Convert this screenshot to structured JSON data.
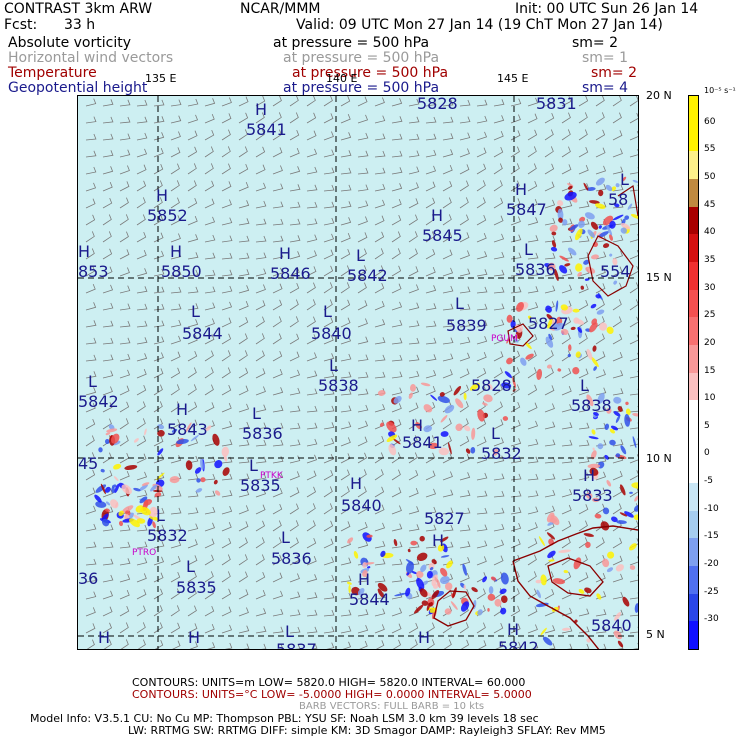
{
  "header": {
    "model": "CONTRAST   3km ARW",
    "org": "NCAR/MMM",
    "init": "Init: 00 UTC Sun 26 Jan 14",
    "fcst_label": "Fcst:",
    "fcst_value": "33 h",
    "valid": "Valid: 09 UTC Mon 27 Jan 14 (19 ChT Mon 27 Jan 14)"
  },
  "fields": [
    {
      "name": "Absolute vorticity",
      "pressure": "at pressure =   500 hPa",
      "sm": "sm= 2",
      "color": "#000000"
    },
    {
      "name": "Horizontal wind vectors",
      "pressure": "at pressure =   500 hPa",
      "sm": "sm= 1",
      "color": "#9a9a9a"
    },
    {
      "name": "Temperature",
      "pressure": "at pressure =   500 hPa",
      "sm": "sm= 2",
      "color": "#a00000"
    },
    {
      "name": "Geopotential height",
      "pressure": "at pressure =   500 hPa",
      "sm": "sm= 4",
      "color": "#1a1a8c"
    }
  ],
  "axes": {
    "lon": [
      "135 E",
      "140 E",
      "145 E"
    ],
    "lat": [
      "20 N",
      "15 N",
      "10 N",
      "5 N"
    ]
  },
  "height_labels": [
    {
      "t": "5828"
    },
    {
      "t": "5831"
    },
    {
      "t": "H"
    },
    {
      "t": "5841"
    },
    {
      "t": "H"
    },
    {
      "t": "5852"
    },
    {
      "t": "H"
    },
    {
      "t": "5847"
    },
    {
      "t": "H"
    },
    {
      "t": "5845"
    },
    {
      "t": "L"
    },
    {
      "t": "58"
    },
    {
      "t": "H"
    },
    {
      "t": "853"
    },
    {
      "t": "H"
    },
    {
      "t": "5850"
    },
    {
      "t": "H"
    },
    {
      "t": "5846"
    },
    {
      "t": "L"
    },
    {
      "t": "5842"
    },
    {
      "t": "L"
    },
    {
      "t": "5836"
    },
    {
      "t": "554"
    },
    {
      "t": "L"
    },
    {
      "t": "5844"
    },
    {
      "t": "L"
    },
    {
      "t": "5840"
    },
    {
      "t": "L"
    },
    {
      "t": "5839"
    },
    {
      "t": "5827"
    },
    {
      "t": "L"
    },
    {
      "t": "5838"
    },
    {
      "t": "5828"
    },
    {
      "t": "L"
    },
    {
      "t": "5838"
    },
    {
      "t": "L"
    },
    {
      "t": "5842"
    },
    {
      "t": "H"
    },
    {
      "t": "5843"
    },
    {
      "t": "L"
    },
    {
      "t": "5836"
    },
    {
      "t": "H"
    },
    {
      "t": "5841"
    },
    {
      "t": "L"
    },
    {
      "t": "5832"
    },
    {
      "t": "45"
    },
    {
      "t": "L"
    },
    {
      "t": "5835"
    },
    {
      "t": "H"
    },
    {
      "t": "5840"
    },
    {
      "t": "H"
    },
    {
      "t": "5833"
    },
    {
      "t": "L"
    },
    {
      "t": "5832"
    },
    {
      "t": "5827"
    },
    {
      "t": "L"
    },
    {
      "t": "5836"
    },
    {
      "t": "H"
    },
    {
      "t": "36"
    },
    {
      "t": "L"
    },
    {
      "t": "5835"
    },
    {
      "t": "H"
    },
    {
      "t": "5844"
    },
    {
      "t": "5840"
    },
    {
      "t": "H"
    },
    {
      "t": "H"
    },
    {
      "t": "L"
    },
    {
      "t": "H"
    },
    {
      "t": "H"
    },
    {
      "t": "5837"
    },
    {
      "t": "5842"
    }
  ],
  "stations": [
    "PGUM",
    "PTKK",
    "PTRO"
  ],
  "colorbar": {
    "unit": "10⁻⁵ s⁻¹",
    "labels": [
      "60",
      "55",
      "50",
      "45",
      "40",
      "35",
      "30",
      "25",
      "20",
      "15",
      "10",
      "5",
      "0",
      "-5",
      "-10",
      "-15",
      "-20",
      "-25",
      "-30"
    ],
    "colors": [
      "#fff200",
      "#fff200",
      "#fdf08a",
      "#c08a40",
      "#a80000",
      "#d41010",
      "#f03030",
      "#f45050",
      "#f77070",
      "#f89898",
      "#fbc0c0",
      "#ffffff",
      "#ffffff",
      "#ffffff",
      "#c9e6f5",
      "#a6cdf0",
      "#7e9ff0",
      "#5070f0",
      "#2a46e8",
      "#1010ff"
    ]
  },
  "footer": {
    "contours1": "CONTOURS:  UNITS=m   LOW=   5820.0      HIGH=   5820.0      INTERVAL=    60.000",
    "contours2": "CONTOURS:  UNITS=°C  LOW= -5.0000      HIGH=  0.0000      INTERVAL=    5.0000",
    "barbs": "BARB VECTORS:  FULL BARB = 10 kts",
    "model_info": "Model Info: V3.5.1     CU: No Cu     MP: Thompson     PBL: YSU      SF: Noah LSM      3.0 km   39 levels    18 sec",
    "model_info2": "LW: RRTMG    SW: RRTMG   DIFF: simple KM: 3D Smagor DAMP: Rayleigh3  SFLAY: Rev MM5"
  }
}
